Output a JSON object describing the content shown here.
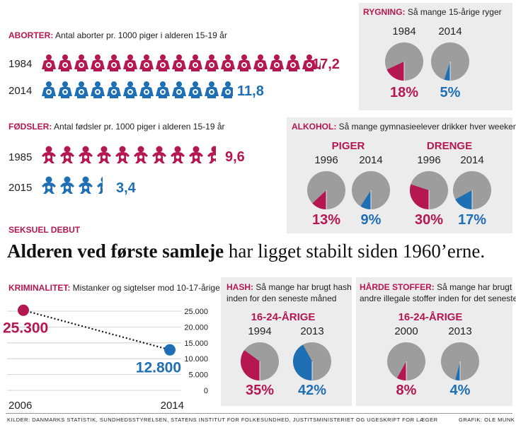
{
  "colors": {
    "red": "#b5174f",
    "blue": "#1e6fb3",
    "grey": "#9d9d9d",
    "panel": "#ececec"
  },
  "aborter": {
    "title": "ABORTER:",
    "desc": "Antal aborter pr. 1000 piger i alderen 15-19 år",
    "rows": [
      {
        "year": "1984",
        "value": "17,2",
        "count": 17.2
      },
      {
        "year": "2014",
        "value": "11,8",
        "count": 11.8
      }
    ]
  },
  "fodsler": {
    "title": "FØDSLER:",
    "desc": "Antal fødsler pr. 1000 piger i alderen 15-19 år",
    "rows": [
      {
        "year": "1985",
        "value": "9,6",
        "count": 9.6
      },
      {
        "year": "2015",
        "value": "3,4",
        "count": 3.4
      }
    ]
  },
  "rygning": {
    "title": "RYGNING:",
    "desc": "Så mange 15-årige ryger"
  },
  "alkohol": {
    "title": "ALKOHOL:",
    "desc": "Så mange gymnasieelever drikker hver weekend",
    "piger": "PIGER",
    "drenge": "DRENGE"
  },
  "seksuel": {
    "label": "SEKSUEL DEBUT",
    "headline_bold": "Alderen ved første samleje",
    "headline_rest": " har ligget stabilt siden 1960’erne."
  },
  "krim": {
    "title": "KRIMINALITET:",
    "desc": "Mistanker og sigtelser mod 10-17-årige"
  },
  "hash": {
    "title": "HASH:",
    "desc1": "Så mange har brugt hash",
    "desc2": "inden for den seneste måned",
    "group": "16-24-ÅRIGE"
  },
  "haarde": {
    "title": "HÅRDE STOFFER:",
    "desc1": "Så mange har brugt",
    "desc2": "andre illegale stoffer inden for det seneste år",
    "group": "16-24-ÅRIGE"
  },
  "footer": {
    "sources": "KILDER: DANMARKS STATISTIK, SUNDHEDSSTYRELSEN, STATENS INSTITUT FOR FOLKESUNDHED, JUSTITSMINISTERIET OG UGESKRIFT FOR LÆGER",
    "credit": "GRAFIK: OLE MUNK"
  },
  "chart_data": [
    {
      "type": "bar",
      "title": "ABORTER",
      "categories": [
        "1984",
        "2014"
      ],
      "values": [
        17.2,
        11.8
      ]
    },
    {
      "type": "bar",
      "title": "FØDSLER",
      "categories": [
        "1985",
        "2015"
      ],
      "values": [
        9.6,
        3.4
      ]
    },
    {
      "type": "pie",
      "title": "RYGNING",
      "pies": [
        {
          "year": "1984",
          "value": 18,
          "label": "18%"
        },
        {
          "year": "2014",
          "value": 5,
          "label": "5%"
        }
      ]
    },
    {
      "type": "pie",
      "title": "ALKOHOL",
      "pies": [
        {
          "group": "PIGER",
          "year": "1996",
          "value": 13,
          "label": "13%"
        },
        {
          "group": "PIGER",
          "year": "2014",
          "value": 9,
          "label": "9%"
        },
        {
          "group": "DRENGE",
          "year": "1996",
          "value": 30,
          "label": "30%"
        },
        {
          "group": "DRENGE",
          "year": "2014",
          "value": 17,
          "label": "17%"
        }
      ]
    },
    {
      "type": "line",
      "title": "KRIMINALITET",
      "x": [
        "2006",
        "2014"
      ],
      "values": [
        25300,
        12800
      ],
      "value_labels": [
        "25.300",
        "12.800"
      ],
      "yticks": [
        "25.000",
        "20.000",
        "15.000",
        "10.000",
        "5.000",
        "0"
      ],
      "ylim": [
        0,
        25000
      ],
      "grid": true
    },
    {
      "type": "pie",
      "title": "HASH",
      "pies": [
        {
          "year": "1994",
          "value": 35,
          "label": "35%"
        },
        {
          "year": "2013",
          "value": 42,
          "label": "42%"
        }
      ]
    },
    {
      "type": "pie",
      "title": "HÅRDE STOFFER",
      "pies": [
        {
          "year": "2000",
          "value": 8,
          "label": "8%"
        },
        {
          "year": "2013",
          "value": 4,
          "label": "4%"
        }
      ]
    }
  ]
}
